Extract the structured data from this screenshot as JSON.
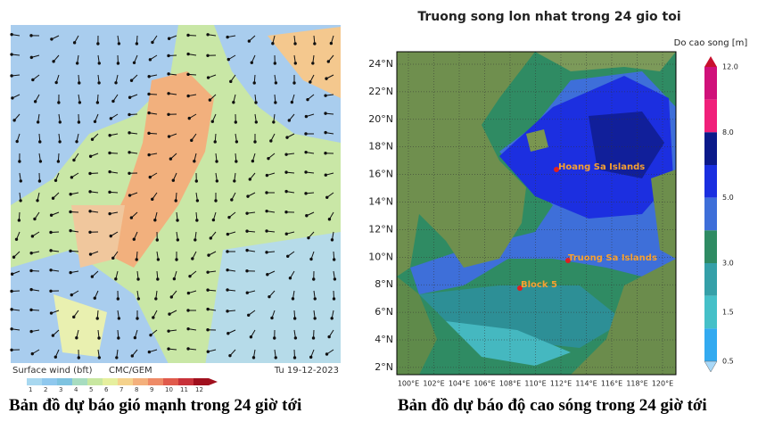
{
  "wind_map": {
    "footer_left": "Surface wind (bft)",
    "footer_model": "CMC/GEM",
    "footer_date": "Tu 19-12-2023",
    "scale_labels": [
      "1",
      "2",
      "3",
      "4",
      "5",
      "6",
      "7",
      "8",
      "9",
      "10",
      "11",
      "12"
    ],
    "caption": "Bản đồ dự báo gió mạnh trong 24 giờ tới"
  },
  "wave_map": {
    "title": "Truong song lon nhat trong 24 gio toi",
    "lat_labels": [
      "24°N",
      "22°N",
      "20°N",
      "18°N",
      "16°N",
      "14°N",
      "12°N",
      "10°N",
      "8°N",
      "6°N",
      "4°N",
      "2°N"
    ],
    "lon_labels": [
      "100°E",
      "102°E",
      "104°E",
      "106°E",
      "108°E",
      "110°E",
      "112°E",
      "114°E",
      "116°E",
      "118°E",
      "120°E"
    ],
    "legend_title": "Do cao song [m]",
    "legend_labels": [
      "12.0",
      "8.0",
      "5.0",
      "3.0",
      "1.5",
      "0.5"
    ],
    "annotations": [
      "Hoang Sa Islands",
      "Truong Sa Islands",
      "Block 5"
    ],
    "caption": "Bản đồ dự báo độ cao sóng trong 24 giờ tới"
  }
}
